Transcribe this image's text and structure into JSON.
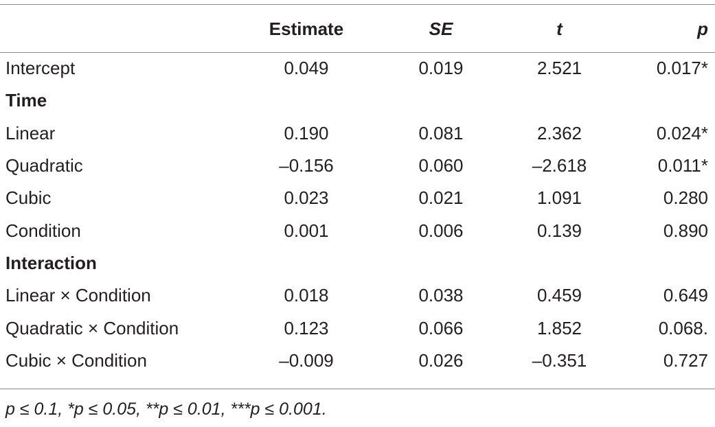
{
  "table": {
    "headers": [
      "",
      "Estimate",
      "SE",
      "t",
      "p"
    ],
    "rows": [
      {
        "type": "data",
        "label": "Intercept",
        "estimate": "0.049",
        "se": "0.019",
        "t": "2.521",
        "p": "0.017*"
      },
      {
        "type": "section",
        "label": "Time"
      },
      {
        "type": "data",
        "label": "Linear",
        "estimate": "0.190",
        "se": "0.081",
        "t": "2.362",
        "p": "0.024*"
      },
      {
        "type": "data",
        "label": "Quadratic",
        "estimate": "–0.156",
        "se": "0.060",
        "t": "–2.618",
        "p": "0.011*"
      },
      {
        "type": "data",
        "label": "Cubic",
        "estimate": "0.023",
        "se": "0.021",
        "t": "1.091",
        "p": "0.280"
      },
      {
        "type": "data",
        "label": "Condition",
        "estimate": "0.001",
        "se": "0.006",
        "t": "0.139",
        "p": "0.890"
      },
      {
        "type": "section",
        "label": "Interaction"
      },
      {
        "type": "data",
        "label": "Linear × Condition",
        "estimate": "0.018",
        "se": "0.038",
        "t": "0.459",
        "p": "0.649"
      },
      {
        "type": "data",
        "label": "Quadratic × Condition",
        "estimate": "0.123",
        "se": "0.066",
        "t": "1.852",
        "p": "0.068."
      },
      {
        "type": "data",
        "label": "Cubic × Condition",
        "estimate": "–0.009",
        "se": "0.026",
        "t": "–0.351",
        "p": "0.727"
      }
    ]
  },
  "footnote": "p ≤ 0.1, *p ≤ 0.05, **p ≤ 0.01, ***p ≤ 0.001."
}
